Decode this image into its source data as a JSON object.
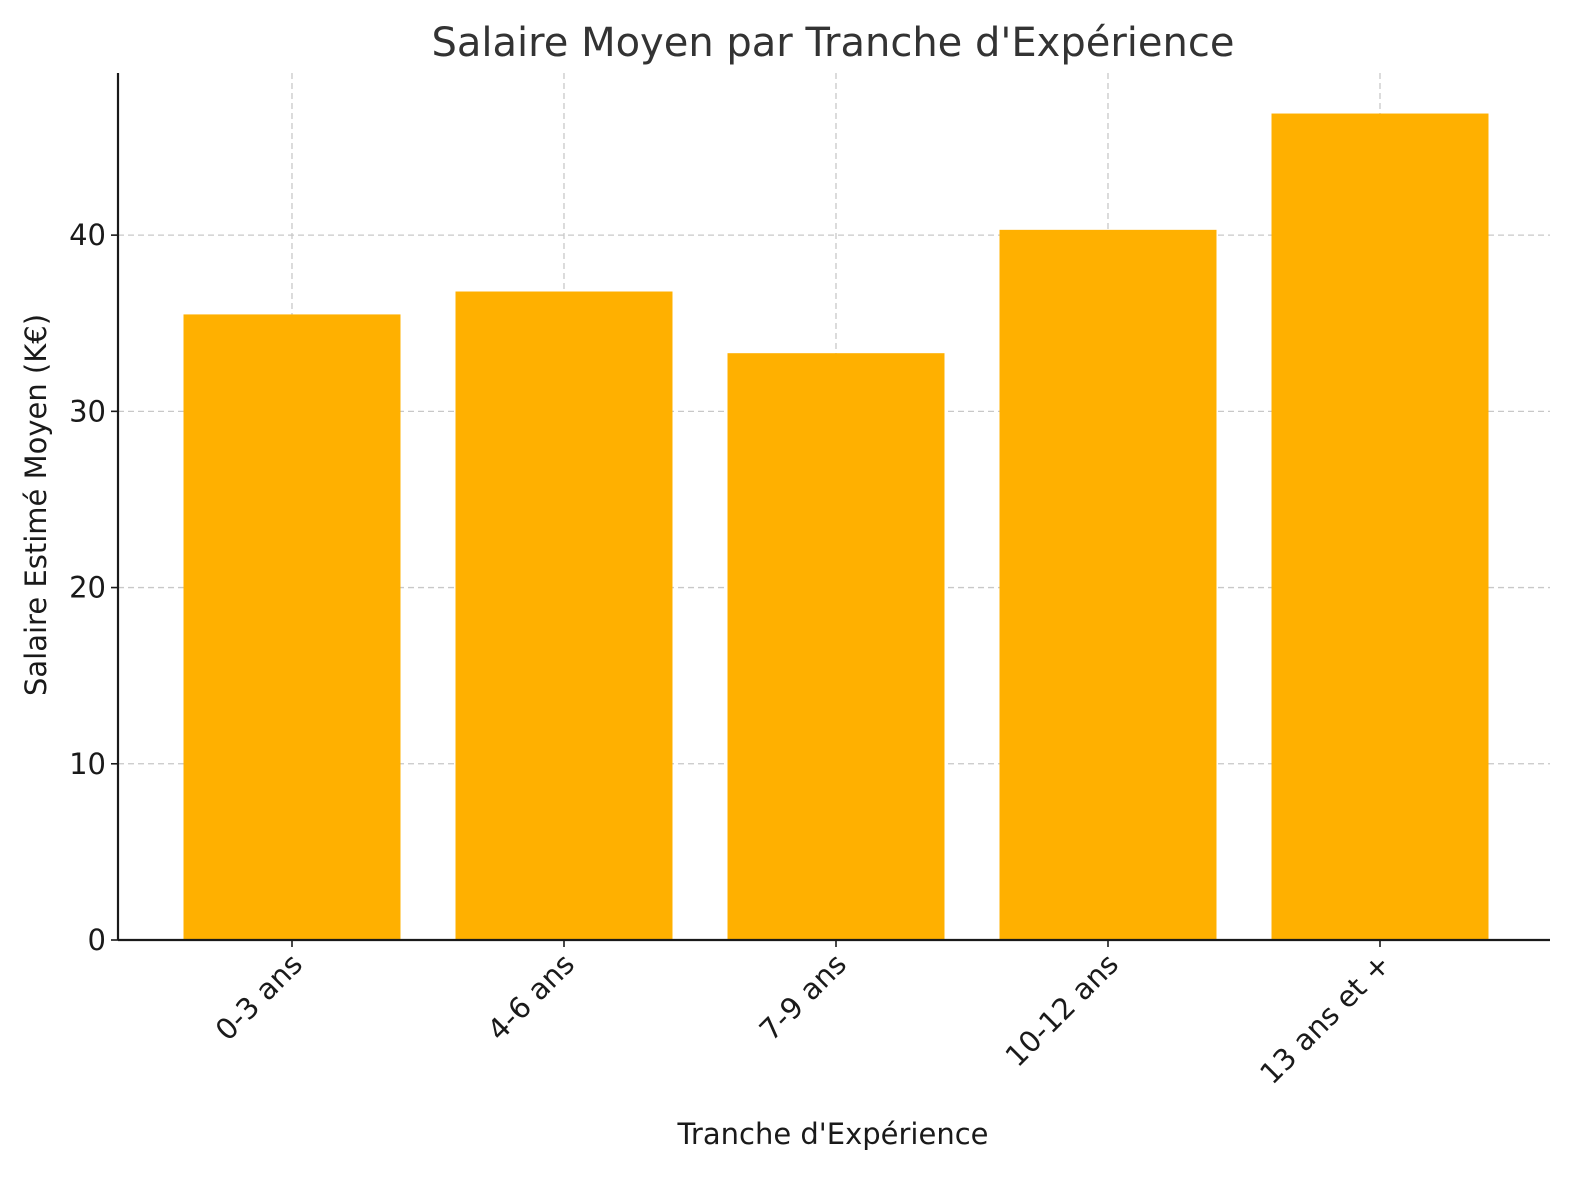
{
  "chart_data": {
    "type": "bar",
    "title": "Salaire Moyen par Tranche d'Expérience",
    "xlabel": "Tranche d'Expérience",
    "ylabel": "Salaire Estimé Moyen (K€)",
    "categories": [
      "0-3 ans",
      "4-6 ans",
      "7-9 ans",
      "10-12 ans",
      "13 ans et +"
    ],
    "values": [
      35.5,
      36.8,
      33.3,
      40.3,
      46.9
    ],
    "ylim": [
      0,
      49.2
    ],
    "yticks": [
      0,
      10,
      20,
      30,
      40
    ],
    "grid": true,
    "bar_color": "#FFB000",
    "xtick_rotation": -45
  }
}
